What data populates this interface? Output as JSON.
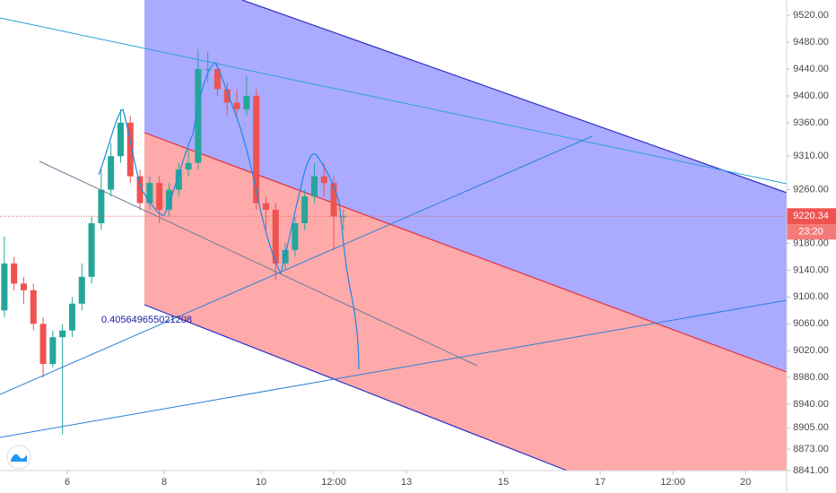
{
  "chart_data": {
    "type": "candlestick",
    "x": [
      -1.3,
      -1.1,
      -0.9,
      -0.7,
      -0.5,
      -0.3,
      -0.1,
      0.1,
      0.3,
      0.5,
      0.7,
      0.9,
      1.1,
      1.3,
      1.5,
      1.7,
      1.9,
      2.1,
      2.3,
      2.5,
      2.7,
      2.9,
      3.1,
      3.3,
      3.5,
      3.7,
      3.9,
      4.1,
      4.3,
      4.5,
      4.7,
      4.9,
      5.1,
      5.3,
      5.5,
      5.7
    ],
    "open": [
      9080,
      9150,
      9120,
      9110,
      9060,
      9000,
      9040,
      9050,
      9090,
      9130,
      9210,
      9260,
      9310,
      9360,
      9280,
      9240,
      9270,
      9230,
      9260,
      9290,
      9300,
      9440,
      9440,
      9410,
      9390,
      9380,
      9400,
      9240,
      9230,
      9150,
      9170,
      9210,
      9250,
      9280,
      9270,
      9220
    ],
    "high": [
      9190,
      9160,
      9130,
      9120,
      9070,
      9050,
      9060,
      9100,
      9150,
      9220,
      9290,
      9330,
      9380,
      9370,
      9290,
      9280,
      9280,
      9270,
      9300,
      9320,
      9470,
      9465,
      9450,
      9420,
      9410,
      9430,
      9410,
      9250,
      9240,
      9180,
      9220,
      9260,
      9300,
      9300,
      9280,
      9230
    ],
    "low": [
      9070,
      9110,
      9090,
      9050,
      8980,
      8995,
      8895,
      9040,
      9080,
      9120,
      9200,
      9250,
      9300,
      9270,
      9230,
      9230,
      9210,
      9220,
      9250,
      9280,
      9290,
      9420,
      9400,
      9370,
      9370,
      9370,
      9230,
      9200,
      9125,
      9140,
      9160,
      9200,
      9240,
      9250,
      9170,
      9200
    ],
    "close": [
      9150,
      9120,
      9110,
      9060,
      9000,
      9040,
      9050,
      9090,
      9130,
      9210,
      9260,
      9310,
      9360,
      9280,
      9240,
      9270,
      9230,
      9260,
      9290,
      9300,
      9440,
      9440,
      9410,
      9390,
      9380,
      9400,
      9240,
      9230,
      9150,
      9170,
      9210,
      9250,
      9280,
      9270,
      9220,
      9220.34
    ],
    "up_color": "#26a69a",
    "down_color": "#ef5350",
    "xlim": [
      -1.39,
      14.85
    ],
    "xticks": [
      {
        "value": 0,
        "label": "6"
      },
      {
        "value": 2,
        "label": "8"
      },
      {
        "value": 4,
        "label": "10"
      },
      {
        "value": 5.5,
        "label": "12:00"
      },
      {
        "value": 7,
        "label": "13"
      },
      {
        "value": 9,
        "label": "15"
      },
      {
        "value": 11,
        "label": "17"
      },
      {
        "value": 12.5,
        "label": "12:00"
      },
      {
        "value": 14,
        "label": "20"
      }
    ],
    "ylim": [
      8841,
      9543
    ],
    "yticks": [
      {
        "value": 9520,
        "label": "9520.00"
      },
      {
        "value": 9480,
        "label": "9480.00"
      },
      {
        "value": 9440,
        "label": "9440.00"
      },
      {
        "value": 9400,
        "label": "9400.00"
      },
      {
        "value": 9360,
        "label": "9360.00"
      },
      {
        "value": 9310,
        "label": "9310.00"
      },
      {
        "value": 9260,
        "label": "9260.00"
      },
      {
        "value": 9180,
        "label": "9180.00"
      },
      {
        "value": 9140,
        "label": "9140.00"
      },
      {
        "value": 9100,
        "label": "9100.00"
      },
      {
        "value": 9060,
        "label": "9060.00"
      },
      {
        "value": 9020,
        "label": "9020.00"
      },
      {
        "value": 8980,
        "label": "8980.00"
      },
      {
        "value": 8940,
        "label": "8940.00"
      },
      {
        "value": 8905,
        "label": "8905.00"
      },
      {
        "value": 8873,
        "label": "8873.00"
      },
      {
        "value": 8841,
        "label": "8841.00"
      }
    ],
    "last_price": 9220.34,
    "countdown": "23:20",
    "annotation": "0.405649655021208"
  }
}
